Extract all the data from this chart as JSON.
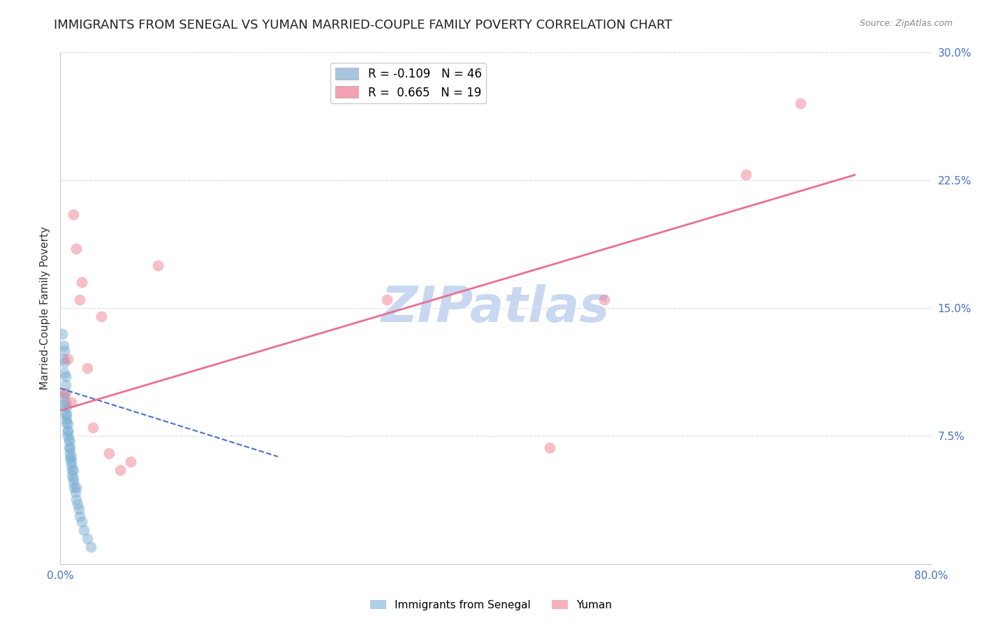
{
  "title": "IMMIGRANTS FROM SENEGAL VS YUMAN MARRIED-COUPLE FAMILY POVERTY CORRELATION CHART",
  "source": "Source: ZipAtlas.com",
  "ylabel": "Married-Couple Family Poverty",
  "xlim": [
    0.0,
    0.8
  ],
  "ylim": [
    0.0,
    0.3
  ],
  "xticks": [
    0.0,
    0.1,
    0.2,
    0.3,
    0.4,
    0.5,
    0.6,
    0.7,
    0.8
  ],
  "xticklabels": [
    "0.0%",
    "",
    "",
    "",
    "",
    "",
    "",
    "",
    "80.0%"
  ],
  "yticks": [
    0.0,
    0.075,
    0.15,
    0.225,
    0.3
  ],
  "yticklabels_right": [
    "",
    "7.5%",
    "15.0%",
    "22.5%",
    "30.0%"
  ],
  "watermark": "ZIPatlas",
  "legend_label_blue": "R = -0.109   N = 46",
  "legend_label_pink": "R =  0.665   N = 19",
  "legend_color_blue": "#a8c4e0",
  "legend_color_pink": "#f4a0b0",
  "blue_scatter_x": [
    0.002,
    0.003,
    0.003,
    0.004,
    0.004,
    0.004,
    0.005,
    0.005,
    0.005,
    0.005,
    0.006,
    0.006,
    0.006,
    0.007,
    0.007,
    0.007,
    0.008,
    0.008,
    0.009,
    0.009,
    0.01,
    0.01,
    0.011,
    0.011,
    0.012,
    0.012,
    0.013,
    0.014,
    0.015,
    0.016,
    0.017,
    0.018,
    0.02,
    0.022,
    0.025,
    0.028,
    0.003,
    0.004,
    0.005,
    0.006,
    0.007,
    0.008,
    0.009,
    0.01,
    0.012,
    0.015
  ],
  "blue_scatter_y": [
    0.135,
    0.128,
    0.12,
    0.125,
    0.118,
    0.112,
    0.11,
    0.105,
    0.1,
    0.095,
    0.092,
    0.088,
    0.085,
    0.082,
    0.078,
    0.075,
    0.072,
    0.068,
    0.065,
    0.062,
    0.06,
    0.058,
    0.055,
    0.052,
    0.05,
    0.048,
    0.045,
    0.042,
    0.038,
    0.035,
    0.032,
    0.028,
    0.025,
    0.02,
    0.015,
    0.01,
    0.098,
    0.093,
    0.088,
    0.083,
    0.078,
    0.073,
    0.068,
    0.063,
    0.055,
    0.045
  ],
  "pink_scatter_x": [
    0.004,
    0.007,
    0.01,
    0.012,
    0.015,
    0.018,
    0.02,
    0.025,
    0.03,
    0.038,
    0.045,
    0.055,
    0.065,
    0.09,
    0.3,
    0.45,
    0.5,
    0.63,
    0.68
  ],
  "pink_scatter_y": [
    0.1,
    0.12,
    0.095,
    0.205,
    0.185,
    0.155,
    0.165,
    0.115,
    0.08,
    0.145,
    0.065,
    0.055,
    0.06,
    0.175,
    0.155,
    0.068,
    0.155,
    0.228,
    0.27
  ],
  "blue_line_x": [
    0.0,
    0.2
  ],
  "blue_line_y": [
    0.103,
    0.063
  ],
  "pink_line_x": [
    0.0,
    0.73
  ],
  "pink_line_y": [
    0.09,
    0.228
  ],
  "blue_color": "#7bafd4",
  "pink_color": "#f08090",
  "blue_line_color": "#4472c4",
  "pink_line_color": "#e87090",
  "background_color": "#ffffff",
  "grid_color": "#dddddd",
  "title_fontsize": 13,
  "axis_label_fontsize": 11,
  "tick_fontsize": 11,
  "watermark_color": "#c8d8f0",
  "watermark_fontsize": 52
}
